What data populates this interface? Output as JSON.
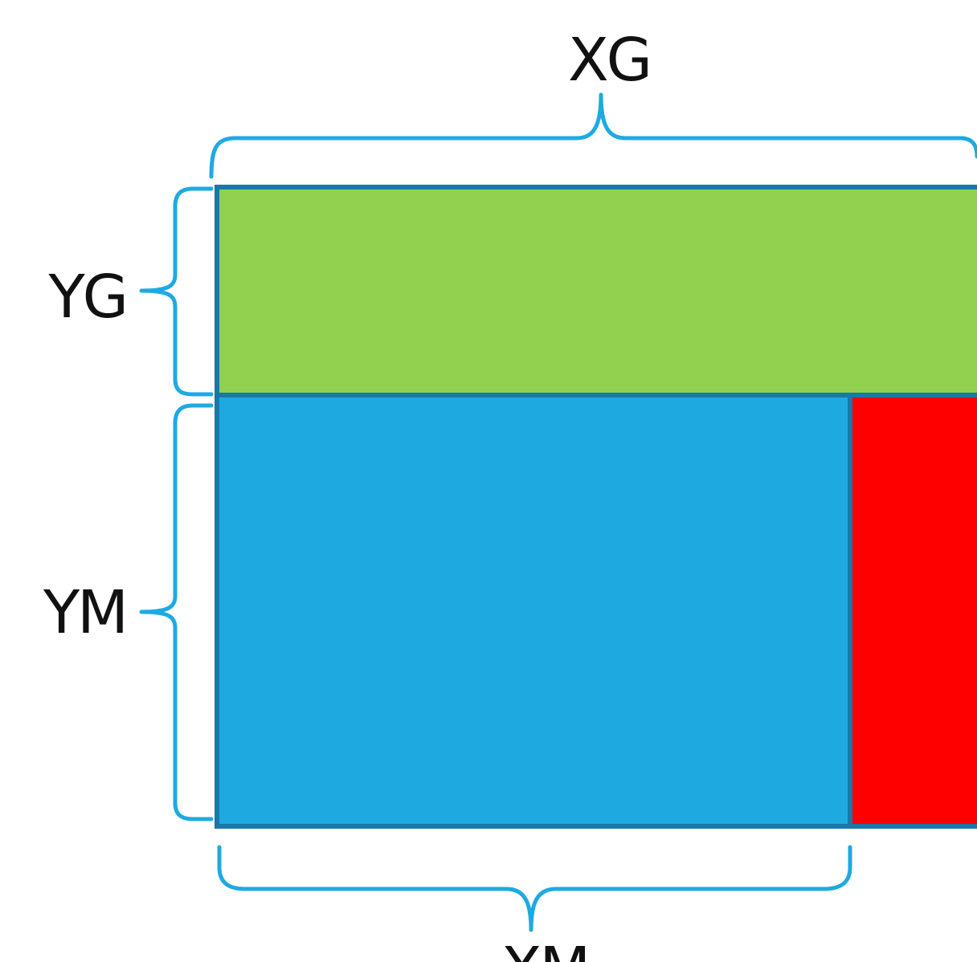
{
  "labels": {
    "top": "XG",
    "left_upper": "YG",
    "left_lower": "YM",
    "bottom": "XM"
  },
  "colors": {
    "green_block": "#92D050",
    "blue_block": "#1EAAE1",
    "red_block": "#FF0000",
    "block_outline": "#1878A8",
    "brace": "#1EAAE1",
    "text": "#111111"
  }
}
